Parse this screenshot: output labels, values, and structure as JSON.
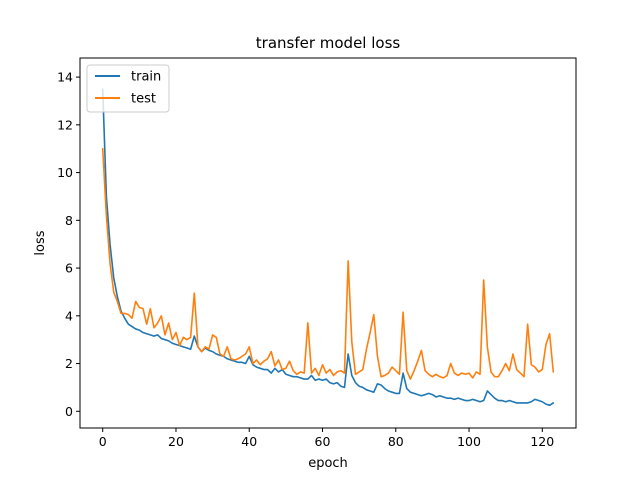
{
  "chart_data": {
    "type": "line",
    "title": "transfer model loss",
    "xlabel": "epoch",
    "ylabel": "loss",
    "xlim": [
      -6.2,
      129.2
    ],
    "ylim": [
      -0.7,
      14.8
    ],
    "xticks": [
      0,
      20,
      40,
      60,
      80,
      100,
      120
    ],
    "yticks": [
      0,
      2,
      4,
      6,
      8,
      10,
      12,
      14
    ],
    "grid": false,
    "legend": "top-left",
    "series": [
      {
        "name": "train",
        "color": "#1f77b4",
        "x": [
          0,
          1,
          2,
          3,
          4,
          5,
          6,
          7,
          8,
          9,
          10,
          11,
          12,
          13,
          14,
          15,
          16,
          17,
          18,
          19,
          20,
          21,
          22,
          23,
          24,
          25,
          26,
          27,
          28,
          29,
          30,
          31,
          32,
          33,
          34,
          35,
          36,
          37,
          38,
          39,
          40,
          41,
          42,
          43,
          44,
          45,
          46,
          47,
          48,
          49,
          50,
          51,
          52,
          53,
          54,
          55,
          56,
          57,
          58,
          59,
          60,
          61,
          62,
          63,
          64,
          65,
          66,
          67,
          68,
          69,
          70,
          71,
          72,
          73,
          74,
          75,
          76,
          77,
          78,
          79,
          80,
          81,
          82,
          83,
          84,
          85,
          86,
          87,
          88,
          89,
          90,
          91,
          92,
          93,
          94,
          95,
          96,
          97,
          98,
          99,
          100,
          101,
          102,
          103,
          104,
          105,
          106,
          107,
          108,
          109,
          110,
          111,
          112,
          113,
          114,
          115,
          116,
          117,
          118,
          119,
          120,
          121,
          122,
          123
        ],
        "values": [
          13.5,
          9.0,
          7.0,
          5.6,
          4.8,
          4.2,
          3.9,
          3.65,
          3.55,
          3.45,
          3.4,
          3.3,
          3.25,
          3.2,
          3.15,
          3.2,
          3.05,
          3.0,
          2.95,
          2.85,
          2.8,
          2.75,
          2.7,
          2.65,
          2.6,
          3.15,
          2.7,
          2.5,
          2.65,
          2.55,
          2.5,
          2.4,
          2.35,
          2.3,
          2.2,
          2.15,
          2.1,
          2.05,
          2.05,
          2.0,
          2.3,
          1.95,
          1.85,
          1.8,
          1.75,
          1.75,
          1.6,
          1.8,
          1.65,
          1.75,
          1.55,
          1.5,
          1.45,
          1.45,
          1.4,
          1.35,
          1.35,
          1.5,
          1.3,
          1.35,
          1.3,
          1.35,
          1.2,
          1.15,
          1.2,
          1.05,
          1.0,
          2.4,
          1.5,
          1.2,
          1.05,
          1.0,
          0.9,
          0.85,
          0.8,
          1.15,
          1.1,
          0.95,
          0.85,
          0.8,
          0.75,
          0.75,
          1.6,
          0.95,
          0.8,
          0.75,
          0.7,
          0.65,
          0.7,
          0.75,
          0.7,
          0.6,
          0.65,
          0.6,
          0.55,
          0.55,
          0.5,
          0.55,
          0.5,
          0.45,
          0.45,
          0.5,
          0.45,
          0.4,
          0.45,
          0.85,
          0.7,
          0.55,
          0.45,
          0.45,
          0.4,
          0.45,
          0.4,
          0.35,
          0.35,
          0.35,
          0.35,
          0.4,
          0.5,
          0.45,
          0.4,
          0.3,
          0.25,
          0.35
        ]
      },
      {
        "name": "test",
        "color": "#ff7f0e",
        "x": [
          0,
          1,
          2,
          3,
          4,
          5,
          6,
          7,
          8,
          9,
          10,
          11,
          12,
          13,
          14,
          15,
          16,
          17,
          18,
          19,
          20,
          21,
          22,
          23,
          24,
          25,
          26,
          27,
          28,
          29,
          30,
          31,
          32,
          33,
          34,
          35,
          36,
          37,
          38,
          39,
          40,
          41,
          42,
          43,
          44,
          45,
          46,
          47,
          48,
          49,
          50,
          51,
          52,
          53,
          54,
          55,
          56,
          57,
          58,
          59,
          60,
          61,
          62,
          63,
          64,
          65,
          66,
          67,
          68,
          69,
          70,
          71,
          72,
          73,
          74,
          75,
          76,
          77,
          78,
          79,
          80,
          81,
          82,
          83,
          84,
          85,
          86,
          87,
          88,
          89,
          90,
          91,
          92,
          93,
          94,
          95,
          96,
          97,
          98,
          99,
          100,
          101,
          102,
          103,
          104,
          105,
          106,
          107,
          108,
          109,
          110,
          111,
          112,
          113,
          114,
          115,
          116,
          117,
          118,
          119,
          120,
          121,
          122,
          123
        ],
        "values": [
          11.0,
          8.2,
          6.2,
          5.0,
          4.6,
          4.1,
          4.1,
          4.05,
          3.9,
          4.6,
          4.35,
          4.3,
          3.65,
          4.3,
          3.5,
          3.7,
          4.0,
          3.2,
          3.7,
          3.0,
          3.3,
          2.75,
          3.1,
          3.0,
          3.1,
          4.95,
          2.7,
          2.5,
          2.7,
          2.6,
          3.2,
          3.1,
          2.4,
          2.3,
          2.7,
          2.2,
          2.15,
          2.2,
          2.3,
          2.4,
          2.7,
          2.0,
          2.15,
          1.95,
          2.1,
          2.2,
          2.5,
          1.9,
          2.15,
          1.75,
          1.8,
          2.1,
          1.7,
          1.55,
          1.65,
          1.6,
          3.7,
          1.6,
          1.8,
          1.5,
          1.95,
          1.6,
          1.75,
          1.5,
          1.65,
          1.7,
          1.6,
          6.3,
          2.9,
          1.55,
          1.65,
          1.75,
          2.6,
          3.3,
          4.05,
          2.3,
          1.45,
          1.5,
          1.6,
          1.85,
          1.7,
          1.55,
          4.15,
          1.7,
          1.35,
          1.7,
          2.1,
          2.55,
          1.7,
          1.55,
          1.45,
          1.55,
          1.45,
          1.4,
          1.5,
          2.0,
          1.6,
          1.5,
          1.6,
          1.55,
          1.6,
          1.4,
          1.65,
          1.55,
          5.5,
          2.7,
          1.65,
          1.45,
          1.45,
          1.7,
          2.0,
          1.7,
          2.4,
          1.75,
          1.6,
          1.45,
          3.65,
          1.95,
          1.85,
          1.65,
          1.75,
          2.8,
          3.25,
          1.65
        ]
      }
    ]
  }
}
